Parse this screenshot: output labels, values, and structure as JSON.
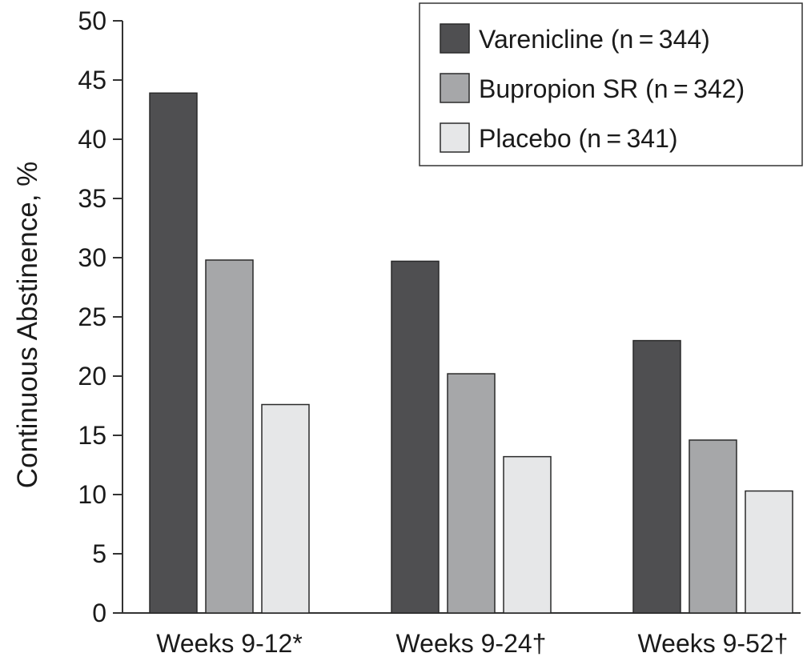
{
  "chart_data": {
    "type": "bar",
    "title": "",
    "xlabel": "",
    "ylabel": "Continuous Abstinence, %",
    "ylim": [
      0,
      50
    ],
    "yticks": [
      0,
      5,
      10,
      15,
      20,
      25,
      30,
      35,
      40,
      45,
      50
    ],
    "categories": [
      "Weeks 9-12*",
      "Weeks 9-24†",
      "Weeks 9-52†"
    ],
    "series": [
      {
        "name": "Varenicline (n = 344)",
        "values": [
          43.9,
          29.7,
          23.0
        ],
        "color": "#4f4f51"
      },
      {
        "name": "Bupropion SR (n = 342)",
        "values": [
          29.8,
          20.2,
          14.6
        ],
        "color": "#a6a7a9"
      },
      {
        "name": "Placebo (n = 341)",
        "values": [
          17.6,
          13.2,
          10.3
        ],
        "color": "#e6e7e8"
      }
    ],
    "grid": false,
    "legend_position": "top-right"
  }
}
